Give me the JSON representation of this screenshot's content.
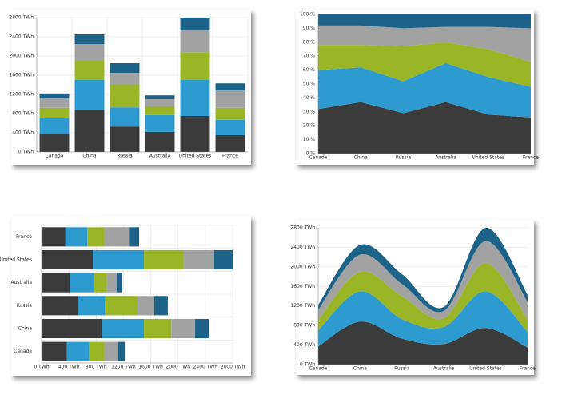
{
  "chart_data": [
    {
      "type": "bar",
      "stacked": true,
      "grid": true,
      "categories": [
        "Canada",
        "China",
        "Russia",
        "Australia",
        "United States",
        "France"
      ],
      "series": [
        {
          "color": "#3b3b3b",
          "values": [
            370,
            880,
            530,
            420,
            750,
            350
          ]
        },
        {
          "color": "#2e9bd0",
          "values": [
            330,
            620,
            400,
            350,
            750,
            320
          ]
        },
        {
          "color": "#9ab526",
          "values": [
            220,
            400,
            470,
            180,
            580,
            250
          ]
        },
        {
          "color": "#a2a2a2",
          "values": [
            200,
            350,
            250,
            150,
            450,
            360
          ]
        },
        {
          "color": "#1d6389",
          "values": [
            100,
            200,
            200,
            80,
            270,
            150
          ]
        }
      ],
      "ylim": [
        0,
        2800
      ],
      "yticks": [
        {
          "value": 0,
          "label": "0 TWh"
        },
        {
          "value": 400,
          "label": "400 TWh"
        },
        {
          "value": 800,
          "label": "800 TWh"
        },
        {
          "value": 1200,
          "label": "1200 TWh"
        },
        {
          "value": 1600,
          "label": "1600 TWh"
        },
        {
          "value": 2000,
          "label": "2000 TWh"
        },
        {
          "value": 2400,
          "label": "2400 TWh"
        },
        {
          "value": 2800,
          "label": "2800 TWh"
        }
      ]
    },
    {
      "type": "area",
      "stacked": true,
      "grid": true,
      "categories": [
        "Canada",
        "China",
        "Russia",
        "Australia",
        "United States",
        "France"
      ],
      "series": [
        {
          "color": "#3b3b3b",
          "values": [
            32,
            37,
            29,
            37,
            28,
            26
          ]
        },
        {
          "color": "#2e9bd0",
          "values": [
            28,
            25,
            23,
            28,
            27,
            22
          ]
        },
        {
          "color": "#9ab526",
          "values": [
            18,
            16,
            25,
            15,
            20,
            18
          ]
        },
        {
          "color": "#a2a2a2",
          "values": [
            14,
            14,
            13,
            11,
            16,
            24
          ]
        },
        {
          "color": "#1d6389",
          "values": [
            8,
            8,
            10,
            9,
            9,
            10
          ]
        }
      ],
      "ylim": [
        0,
        100
      ],
      "yticks": [
        {
          "value": 0,
          "label": "0 %"
        },
        {
          "value": 10,
          "label": "10 %"
        },
        {
          "value": 20,
          "label": "20 %"
        },
        {
          "value": 30,
          "label": "30 %"
        },
        {
          "value": 40,
          "label": "40 %"
        },
        {
          "value": 50,
          "label": "50 %"
        },
        {
          "value": 60,
          "label": "60 %"
        },
        {
          "value": 70,
          "label": "70 %"
        },
        {
          "value": 80,
          "label": "80 %"
        },
        {
          "value": 90,
          "label": "90 %"
        },
        {
          "value": 100,
          "label": "100 %"
        }
      ]
    },
    {
      "type": "bar",
      "stacked": true,
      "horizontal": true,
      "grid": true,
      "categories": [
        "Canada",
        "China",
        "Russia",
        "Australia",
        "United States",
        "France"
      ],
      "series": [
        {
          "color": "#3b3b3b",
          "values": [
            370,
            880,
            530,
            420,
            750,
            350
          ]
        },
        {
          "color": "#2e9bd0",
          "values": [
            330,
            620,
            400,
            350,
            750,
            320
          ]
        },
        {
          "color": "#9ab526",
          "values": [
            220,
            400,
            470,
            180,
            580,
            250
          ]
        },
        {
          "color": "#a2a2a2",
          "values": [
            200,
            350,
            250,
            150,
            450,
            360
          ]
        },
        {
          "color": "#1d6389",
          "values": [
            100,
            200,
            200,
            80,
            270,
            150
          ]
        }
      ],
      "xlim": [
        0,
        2800
      ],
      "xticks": [
        {
          "value": 0,
          "label": "0 TWh"
        },
        {
          "value": 400,
          "label": "400 TWh"
        },
        {
          "value": 800,
          "label": "800 TWh"
        },
        {
          "value": 1200,
          "label": "1200 TWh"
        },
        {
          "value": 1600,
          "label": "1600 TWh"
        },
        {
          "value": 2000,
          "label": "2000 TWh"
        },
        {
          "value": 2400,
          "label": "2400 TWh"
        },
        {
          "value": 2800,
          "label": "2800 TWh"
        }
      ]
    },
    {
      "type": "area",
      "stacked": true,
      "smooth": true,
      "grid": true,
      "categories": [
        "Canada",
        "China",
        "Russia",
        "Australia",
        "United States",
        "France"
      ],
      "series": [
        {
          "color": "#3b3b3b",
          "values": [
            370,
            880,
            530,
            420,
            750,
            350
          ]
        },
        {
          "color": "#2e9bd0",
          "values": [
            330,
            620,
            400,
            350,
            750,
            320
          ]
        },
        {
          "color": "#9ab526",
          "values": [
            220,
            400,
            470,
            180,
            580,
            250
          ]
        },
        {
          "color": "#a2a2a2",
          "values": [
            200,
            350,
            250,
            150,
            450,
            360
          ]
        },
        {
          "color": "#1d6389",
          "values": [
            100,
            200,
            200,
            80,
            270,
            150
          ]
        }
      ],
      "ylim": [
        0,
        2800
      ],
      "yticks": [
        {
          "value": 0,
          "label": "0 TWh"
        },
        {
          "value": 400,
          "label": "400 TWh"
        },
        {
          "value": 800,
          "label": "800 TWh"
        },
        {
          "value": 1200,
          "label": "1200 TWh"
        },
        {
          "value": 1600,
          "label": "1600 TWh"
        },
        {
          "value": 2000,
          "label": "2000 TWh"
        },
        {
          "value": 2400,
          "label": "2400 TWh"
        },
        {
          "value": 2800,
          "label": "2800 TWh"
        }
      ]
    }
  ]
}
